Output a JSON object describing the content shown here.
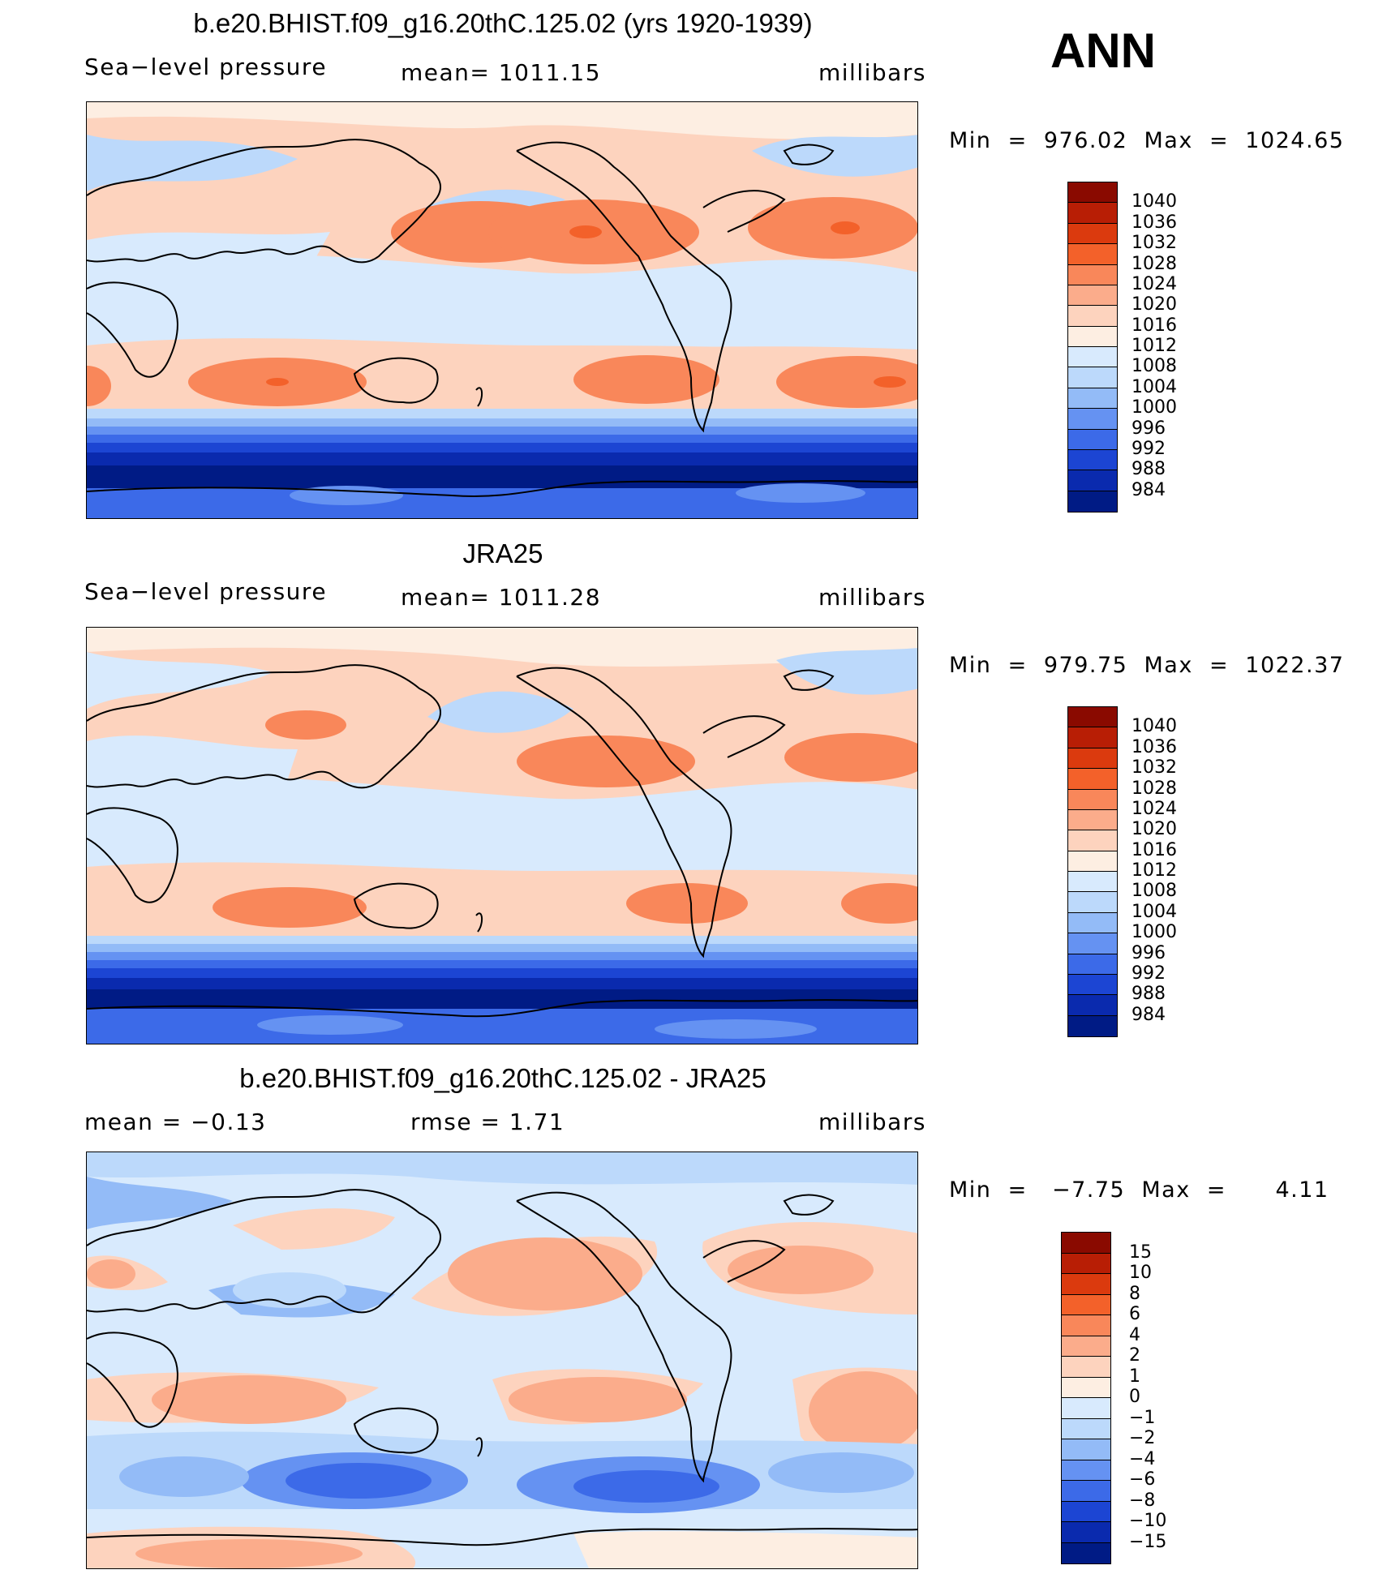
{
  "season": "ANN",
  "panels": [
    {
      "title": "b.e20.BHIST.f09_g16.20thC.125.02 (yrs 1920-1939)",
      "left_label": "Sea−level pressure",
      "center_label": "mean=  1011.15",
      "right_label": "millibars",
      "minmax": "Min  =  976.02  Max  =  1024.65",
      "colorbar": {
        "labels": [
          "1040",
          "1036",
          "1032",
          "1028",
          "1024",
          "1020",
          "1016",
          "1012",
          "1008",
          "1004",
          "1000",
          "996",
          "992",
          "988",
          "984"
        ],
        "colors": [
          "#8a0a00",
          "#b81e05",
          "#db3a0e",
          "#f3612a",
          "#f9875a",
          "#fbac8b",
          "#fdd3be",
          "#fdeee2",
          "#d8eafd",
          "#bcd9fb",
          "#93bbf7",
          "#6592f2",
          "#3c6ae8",
          "#1c45d3",
          "#0a2aae",
          "#001b85"
        ]
      }
    },
    {
      "title": "JRA25",
      "left_label": "Sea−level pressure",
      "center_label": "mean=  1011.28",
      "right_label": "millibars",
      "minmax": "Min  =  979.75  Max  =  1022.37",
      "colorbar": {
        "labels": [
          "1040",
          "1036",
          "1032",
          "1028",
          "1024",
          "1020",
          "1016",
          "1012",
          "1008",
          "1004",
          "1000",
          "996",
          "992",
          "988",
          "984"
        ],
        "colors": [
          "#8a0a00",
          "#b81e05",
          "#db3a0e",
          "#f3612a",
          "#f9875a",
          "#fbac8b",
          "#fdd3be",
          "#fdeee2",
          "#d8eafd",
          "#bcd9fb",
          "#93bbf7",
          "#6592f2",
          "#3c6ae8",
          "#1c45d3",
          "#0a2aae",
          "#001b85"
        ]
      }
    },
    {
      "title": "b.e20.BHIST.f09_g16.20thC.125.02 - JRA25",
      "left_label": "mean  =    −0.13",
      "center_label": "rmse  =     1.71",
      "right_label": "millibars",
      "minmax": "Min  =   −7.75  Max  =      4.11",
      "colorbar": {
        "labels": [
          "15",
          "10",
          "8",
          "6",
          "4",
          "2",
          "1",
          "0",
          "−1",
          "−2",
          "−4",
          "−6",
          "−8",
          "−10",
          "−15"
        ],
        "colors": [
          "#8a0a00",
          "#b81e05",
          "#db3a0e",
          "#f3612a",
          "#f9875a",
          "#fbac8b",
          "#fdd3be",
          "#fdeee2",
          "#d8eafd",
          "#bcd9fb",
          "#93bbf7",
          "#6592f2",
          "#3c6ae8",
          "#1c45d3",
          "#0a2aae",
          "#001b85"
        ]
      }
    }
  ]
}
